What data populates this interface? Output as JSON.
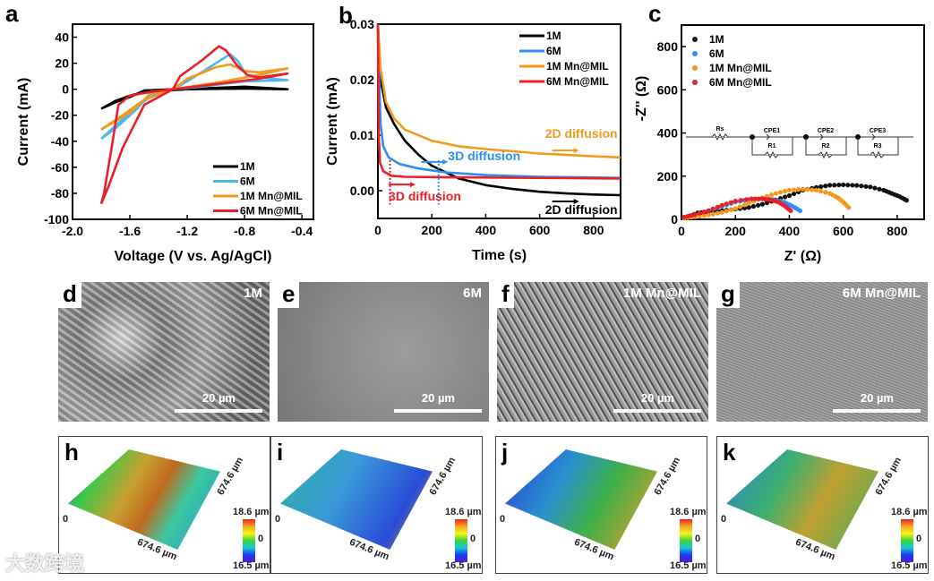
{
  "chart_data": [
    {
      "panel": "a",
      "type": "line",
      "xlabel": "Voltage (V vs. Ag/AgCl)",
      "ylabel": "Current (mA)",
      "xlim": [
        -2.0,
        -0.32
      ],
      "ylim": [
        -100,
        50
      ],
      "xticks": [
        -2.0,
        -1.6,
        -1.2,
        -0.8,
        -0.4
      ],
      "xtick_labels": [
        "-2.0",
        "-1.6",
        "-1.2",
        "-0.8",
        "-0.4"
      ],
      "yticks": [
        -100,
        -80,
        -60,
        -40,
        -20,
        0,
        20,
        40
      ],
      "ytick_labels": [
        "-100",
        "-80",
        "-60",
        "-40",
        "-20",
        "0",
        "20",
        "40"
      ],
      "legend": "bottom-right",
      "series": [
        {
          "name": "1M",
          "color": "#000000",
          "points": [
            [
              -1.8,
              -15
            ],
            [
              -1.7,
              -10
            ],
            [
              -1.6,
              -6
            ],
            [
              -1.5,
              -1
            ],
            [
              -1.3,
              0
            ],
            [
              -1.0,
              1
            ],
            [
              -0.8,
              2
            ],
            [
              -0.5,
              0
            ],
            [
              -0.8,
              0.5
            ],
            [
              -1.2,
              0
            ],
            [
              -1.5,
              -2
            ],
            [
              -1.6,
              -5
            ],
            [
              -1.7,
              -9
            ],
            [
              -1.8,
              -15
            ]
          ]
        },
        {
          "name": "6M",
          "color": "#4db8f0",
          "points": [
            [
              -1.8,
              -38
            ],
            [
              -1.7,
              -30
            ],
            [
              -1.55,
              -15
            ],
            [
              -1.45,
              -2
            ],
            [
              -1.3,
              0
            ],
            [
              -1.2,
              6
            ],
            [
              -1.0,
              20
            ],
            [
              -0.9,
              27
            ],
            [
              -0.85,
              22
            ],
            [
              -0.78,
              10
            ],
            [
              -0.5,
              7
            ],
            [
              -0.8,
              6
            ],
            [
              -1.1,
              2
            ],
            [
              -1.3,
              0
            ],
            [
              -1.45,
              -5
            ],
            [
              -1.6,
              -18
            ],
            [
              -1.8,
              -38
            ]
          ]
        },
        {
          "name": "1M Mn@MIL",
          "color": "#f39a1e",
          "points": [
            [
              -1.8,
              -31
            ],
            [
              -1.6,
              -18
            ],
            [
              -1.45,
              -3
            ],
            [
              -1.3,
              0
            ],
            [
              -1.2,
              8
            ],
            [
              -1.0,
              17
            ],
            [
              -0.9,
              19
            ],
            [
              -0.8,
              14
            ],
            [
              -0.7,
              13
            ],
            [
              -0.5,
              16
            ],
            [
              -0.7,
              11
            ],
            [
              -1.0,
              5
            ],
            [
              -1.3,
              0
            ],
            [
              -1.5,
              -8
            ],
            [
              -1.65,
              -20
            ],
            [
              -1.8,
              -31
            ]
          ]
        },
        {
          "name": "6M Mn@MIL",
          "color": "#e8202a",
          "points": [
            [
              -1.8,
              -88
            ],
            [
              -1.78,
              -80
            ],
            [
              -1.72,
              -40
            ],
            [
              -1.68,
              -12
            ],
            [
              -1.6,
              -5
            ],
            [
              -1.45,
              -2
            ],
            [
              -1.3,
              0
            ],
            [
              -1.25,
              10
            ],
            [
              -1.1,
              22
            ],
            [
              -0.98,
              33
            ],
            [
              -0.93,
              30
            ],
            [
              -0.85,
              18
            ],
            [
              -0.78,
              11
            ],
            [
              -0.7,
              9
            ],
            [
              -0.5,
              12
            ],
            [
              -0.7,
              8
            ],
            [
              -1.0,
              4
            ],
            [
              -1.3,
              0
            ],
            [
              -1.5,
              -12
            ],
            [
              -1.65,
              -45
            ],
            [
              -1.75,
              -75
            ],
            [
              -1.8,
              -88
            ]
          ]
        }
      ]
    },
    {
      "panel": "b",
      "type": "line",
      "xlabel": "Time (s)",
      "ylabel": "Current (mA)",
      "xlim": [
        0,
        900
      ],
      "ylim": [
        -0.005,
        0.03
      ],
      "xticks": [
        0,
        200,
        400,
        600,
        800
      ],
      "xtick_labels": [
        "0",
        "200",
        "400",
        "600",
        "800"
      ],
      "yticks": [
        0.0,
        0.01,
        0.02,
        0.03
      ],
      "ytick_labels": [
        "0.00",
        "0.01",
        "0.02",
        "0.03"
      ],
      "legend": "top-right",
      "series": [
        {
          "name": "1M",
          "color": "#000000",
          "points": [
            [
              0,
              0.03
            ],
            [
              10,
              0.02
            ],
            [
              30,
              0.015
            ],
            [
              60,
              0.012
            ],
            [
              100,
              0.009
            ],
            [
              150,
              0.0065
            ],
            [
              200,
              0.0045
            ],
            [
              300,
              0.0022
            ],
            [
              400,
              0.001
            ],
            [
              500,
              0.0003
            ],
            [
              600,
              -0.0002
            ],
            [
              700,
              -0.0005
            ],
            [
              800,
              -0.0007
            ],
            [
              900,
              -0.0008
            ]
          ]
        },
        {
          "name": "6M",
          "color": "#2d8ff0",
          "points": [
            [
              0,
              0.03
            ],
            [
              5,
              0.02
            ],
            [
              10,
              0.012
            ],
            [
              20,
              0.008
            ],
            [
              40,
              0.006
            ],
            [
              80,
              0.0048
            ],
            [
              150,
              0.004
            ],
            [
              250,
              0.0033
            ],
            [
              400,
              0.0028
            ],
            [
              600,
              0.0025
            ],
            [
              900,
              0.0023
            ]
          ]
        },
        {
          "name": "1M Mn@MIL",
          "color": "#f39a1e",
          "points": [
            [
              0,
              0.03
            ],
            [
              10,
              0.022
            ],
            [
              30,
              0.016
            ],
            [
              60,
              0.013
            ],
            [
              100,
              0.011
            ],
            [
              200,
              0.009
            ],
            [
              300,
              0.008
            ],
            [
              400,
              0.0075
            ],
            [
              600,
              0.0067
            ],
            [
              800,
              0.0062
            ],
            [
              900,
              0.006
            ]
          ]
        },
        {
          "name": "6M Mn@MIL",
          "color": "#e8202a",
          "points": [
            [
              0,
              0.03
            ],
            [
              3,
              0.01
            ],
            [
              8,
              0.005
            ],
            [
              20,
              0.0035
            ],
            [
              50,
              0.0027
            ],
            [
              100,
              0.0025
            ],
            [
              300,
              0.0024
            ],
            [
              900,
              0.0022
            ]
          ]
        }
      ],
      "annotations": [
        {
          "text": "2D diffusion",
          "color": "#f39a1e",
          "at": [
            620,
            0.0095
          ]
        },
        {
          "text": "3D diffusion",
          "color": "#2d8ff0",
          "at": [
            260,
            0.0055
          ]
        },
        {
          "text": "3D diffusion",
          "color": "#e8202a",
          "at": [
            40,
            -0.0018
          ]
        },
        {
          "text": "2D diffusion",
          "color": "#000000",
          "at": [
            620,
            -0.0042
          ]
        }
      ],
      "markers": [
        {
          "x": 45,
          "color": "#e8202a"
        },
        {
          "x": 225,
          "color": "#2d8ff0"
        }
      ]
    },
    {
      "panel": "c",
      "type": "scatter",
      "xlabel": "Z' (Ω)",
      "ylabel": "-Z'' (Ω)",
      "xlim": [
        0,
        900
      ],
      "ylim": [
        0,
        900
      ],
      "xticks": [
        0,
        200,
        400,
        600,
        800
      ],
      "xtick_labels": [
        "0",
        "200",
        "400",
        "600",
        "800"
      ],
      "yticks": [
        0,
        200,
        400,
        600,
        800
      ],
      "ytick_labels": [
        "0",
        "200",
        "400",
        "600",
        "800"
      ],
      "legend": "top-left",
      "series": [
        {
          "name": "1M",
          "color": "#111111",
          "points": [
            [
              20,
              10
            ],
            [
              60,
              30
            ],
            [
              100,
              35
            ],
            [
              150,
              40
            ],
            [
              200,
              47
            ],
            [
              250,
              55
            ],
            [
              300,
              70
            ],
            [
              350,
              90
            ],
            [
              400,
              110
            ],
            [
              450,
              135
            ],
            [
              500,
              148
            ],
            [
              550,
              158
            ],
            [
              600,
              160
            ],
            [
              650,
              157
            ],
            [
              700,
              150
            ],
            [
              750,
              135
            ],
            [
              780,
              120
            ],
            [
              810,
              105
            ],
            [
              835,
              88
            ]
          ]
        },
        {
          "name": "6M",
          "color": "#2d8ff0",
          "points": [
            [
              10,
              10
            ],
            [
              50,
              20
            ],
            [
              100,
              40
            ],
            [
              150,
              60
            ],
            [
              200,
              80
            ],
            [
              250,
              92
            ],
            [
              300,
              95
            ],
            [
              340,
              92
            ],
            [
              380,
              80
            ],
            [
              410,
              62
            ],
            [
              440,
              40
            ]
          ]
        },
        {
          "name": "1M Mn@MIL",
          "color": "#f39a1e",
          "points": [
            [
              10,
              5
            ],
            [
              50,
              12
            ],
            [
              100,
              20
            ],
            [
              150,
              32
            ],
            [
              200,
              50
            ],
            [
              250,
              75
            ],
            [
              300,
              100
            ],
            [
              350,
              120
            ],
            [
              400,
              135
            ],
            [
              450,
              140
            ],
            [
              500,
              135
            ],
            [
              550,
              120
            ],
            [
              580,
              100
            ],
            [
              600,
              80
            ],
            [
              620,
              55
            ]
          ]
        },
        {
          "name": "6M Mn@MIL",
          "color": "#e8202a",
          "points": [
            [
              10,
              10
            ],
            [
              50,
              22
            ],
            [
              100,
              40
            ],
            [
              150,
              65
            ],
            [
              200,
              85
            ],
            [
              260,
              95
            ],
            [
              300,
              95
            ],
            [
              330,
              90
            ],
            [
              360,
              80
            ],
            [
              380,
              65
            ],
            [
              405,
              40
            ]
          ]
        }
      ],
      "circuit": {
        "labels": [
          "Rs",
          "CPE1",
          "R1",
          "CPE2",
          "R2",
          "CPE3",
          "R3"
        ]
      }
    }
  ],
  "panels": {
    "a": "a",
    "b": "b",
    "c": "c",
    "sem": [
      {
        "label": "d",
        "sample": "1M",
        "scale": "20 µm"
      },
      {
        "label": "e",
        "sample": "6M",
        "scale": "20 µm"
      },
      {
        "label": "f",
        "sample": "1M Mn@MIL",
        "scale": "20 µm"
      },
      {
        "label": "g",
        "sample": "6M Mn@MIL",
        "scale": "20 µm"
      }
    ],
    "topo": [
      {
        "label": "h",
        "size_x": "674.6 µm",
        "size_y": "674.6 µm",
        "origin": "0",
        "cmax": "18.6 µm",
        "cmid": "0",
        "cmin": "16.5 µm"
      },
      {
        "label": "i",
        "size_x": "674.6 µm",
        "size_y": "674.6 µm",
        "origin": "0",
        "cmax": "18.6 µm",
        "cmid": "0",
        "cmin": "16.5 µm"
      },
      {
        "label": "j",
        "size_x": "674.6 µm",
        "size_y": "674.6 µm",
        "origin": "0",
        "cmax": "18.6 µm",
        "cmid": "0",
        "cmin": "16.5 µm"
      },
      {
        "label": "k",
        "size_x": "674.6 µm",
        "size_y": "674.6 µm",
        "origin": "0",
        "cmax": "18.6 µm",
        "cmid": "0",
        "cmin": "16.5 µm"
      }
    ]
  },
  "watermark": "大数跨境"
}
